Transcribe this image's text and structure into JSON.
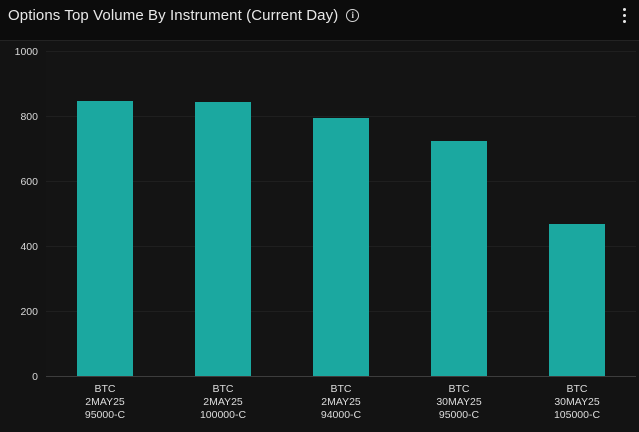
{
  "header": {
    "title": "Options Top Volume By Instrument (Current Day)",
    "info_icon_glyph": "i",
    "icons": [
      "info-circle-icon",
      "kebab-menu-icon"
    ]
  },
  "colors": {
    "page_background": "#131313",
    "header_background": "#0c0c0c",
    "bar": "#1ba8a0",
    "gridline": "#1f1f1f",
    "axis_baseline": "#3d3d3d",
    "title_text": "#e8e8e8",
    "tick_text": "#d8d8d8"
  },
  "chart_data": {
    "type": "bar",
    "title": "Options Top Volume By Instrument (Current Day)",
    "categories": [
      [
        "BTC",
        "2MAY25",
        "95000-C"
      ],
      [
        "BTC",
        "2MAY25",
        "100000-C"
      ],
      [
        "BTC",
        "2MAY25",
        "94000-C"
      ],
      [
        "BTC",
        "30MAY25",
        "95000-C"
      ],
      [
        "BTC",
        "30MAY25",
        "105000-C"
      ]
    ],
    "values": [
      846,
      843,
      795,
      724,
      469
    ],
    "xlabel": "",
    "ylabel": "",
    "ylim": [
      0,
      1000
    ],
    "yticks": [
      0,
      200,
      400,
      600,
      800,
      1000
    ],
    "grid": "horizontal",
    "legend": "none",
    "bar_color": "#1ba8a0"
  }
}
